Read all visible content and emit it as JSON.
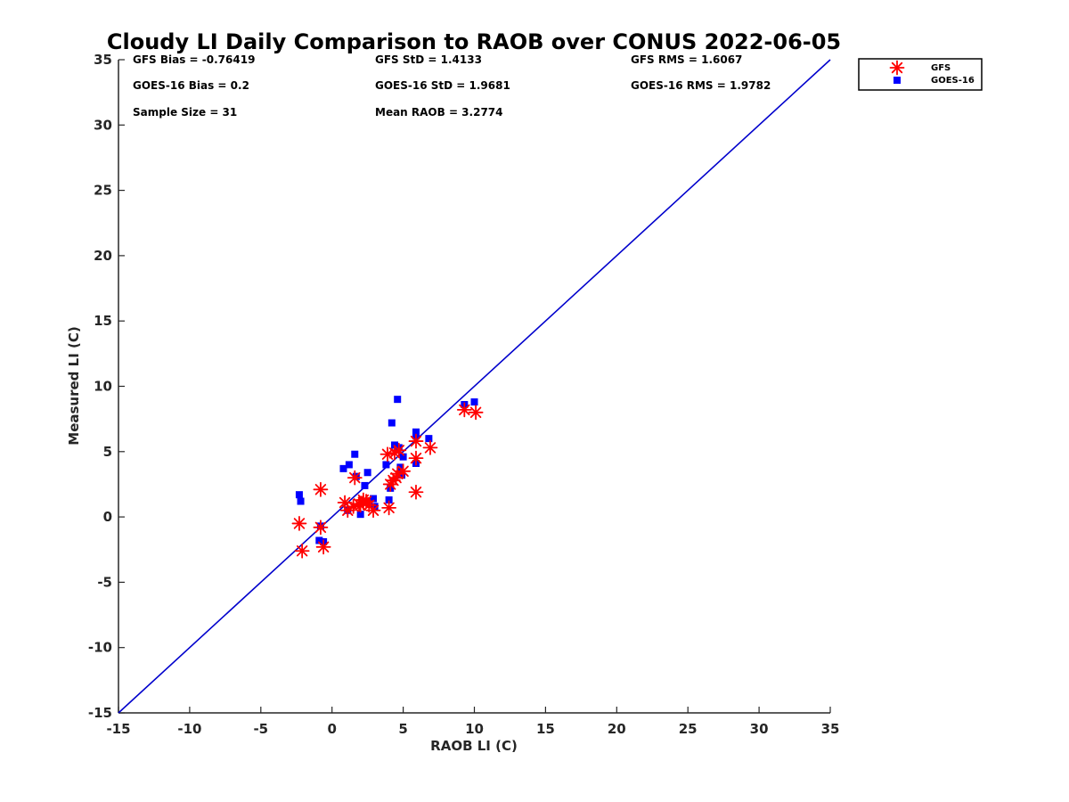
{
  "chart_data": {
    "type": "scatter",
    "title": "Cloudy LI Daily Comparison to RAOB over CONUS 2022-06-05",
    "xlabel": "RAOB LI (C)",
    "ylabel": "Measured LI (C)",
    "xlim": [
      -15,
      35
    ],
    "ylim": [
      -15,
      35
    ],
    "xticks": [
      "-15",
      "-10",
      "-5",
      "0",
      "5",
      "10",
      "15",
      "20",
      "25",
      "30",
      "35"
    ],
    "yticks": [
      "-15",
      "-10",
      "-5",
      "0",
      "5",
      "10",
      "15",
      "20",
      "25",
      "30",
      "35"
    ],
    "grid": false,
    "legend_position": "top-right",
    "reference_line": {
      "x": [
        -15,
        35
      ],
      "y": [
        -15,
        35
      ],
      "color": "#0000cc"
    },
    "stats": {
      "gfs_bias": "GFS Bias = -0.76419",
      "goes_bias": "GOES-16 Bias = 0.2",
      "sample_size": "Sample Size = 31",
      "gfs_std": "GFS StD = 1.4133",
      "goes_std": "GOES-16 StD = 1.9681",
      "mean_raob": "Mean RAOB = 3.2774",
      "gfs_rms": "GFS RMS = 1.6067",
      "goes_rms": "GOES-16 RMS = 1.9782"
    },
    "series": [
      {
        "name": "GFS",
        "marker": "asterisk",
        "color": "#ff0000",
        "points": [
          [
            -2.3,
            -0.5
          ],
          [
            -2.1,
            -2.6
          ],
          [
            -0.8,
            2.1
          ],
          [
            -0.8,
            -0.8
          ],
          [
            -0.6,
            -2.3
          ],
          [
            0.9,
            1.1
          ],
          [
            1.1,
            0.5
          ],
          [
            1.5,
            0.8
          ],
          [
            1.6,
            3.0
          ],
          [
            1.9,
            1.0
          ],
          [
            2.2,
            1.3
          ],
          [
            2.4,
            1.2
          ],
          [
            2.6,
            0.9
          ],
          [
            2.9,
            0.5
          ],
          [
            3.9,
            4.8
          ],
          [
            4.0,
            0.7
          ],
          [
            4.1,
            2.5
          ],
          [
            4.3,
            2.8
          ],
          [
            4.4,
            4.9
          ],
          [
            4.6,
            3.3
          ],
          [
            4.7,
            5.1
          ],
          [
            5.0,
            3.5
          ],
          [
            5.9,
            5.8
          ],
          [
            5.9,
            4.5
          ],
          [
            5.9,
            1.9
          ],
          [
            6.9,
            5.3
          ],
          [
            9.3,
            8.2
          ],
          [
            10.1,
            8.0
          ],
          [
            2.2,
            1.1
          ],
          [
            2.0,
            0.9
          ],
          [
            4.5,
            3.0
          ]
        ]
      },
      {
        "name": "GOES-16",
        "marker": "square",
        "color": "#0000ff",
        "points": [
          [
            -2.3,
            1.7
          ],
          [
            -2.2,
            1.2
          ],
          [
            -0.9,
            -1.8
          ],
          [
            -0.8,
            -0.7
          ],
          [
            -0.6,
            -1.9
          ],
          [
            0.8,
            3.7
          ],
          [
            1.1,
            0.5
          ],
          [
            1.2,
            4.0
          ],
          [
            1.6,
            4.8
          ],
          [
            1.7,
            3.1
          ],
          [
            2.0,
            0.2
          ],
          [
            2.3,
            2.4
          ],
          [
            2.5,
            3.4
          ],
          [
            2.9,
            1.4
          ],
          [
            3.0,
            0.8
          ],
          [
            3.8,
            4.0
          ],
          [
            4.0,
            1.3
          ],
          [
            4.1,
            2.2
          ],
          [
            4.2,
            7.2
          ],
          [
            4.4,
            5.5
          ],
          [
            4.6,
            9.0
          ],
          [
            4.7,
            5.3
          ],
          [
            4.8,
            3.8
          ],
          [
            4.9,
            3.2
          ],
          [
            5.0,
            4.6
          ],
          [
            5.9,
            6.5
          ],
          [
            5.9,
            6.2
          ],
          [
            5.9,
            4.1
          ],
          [
            6.8,
            6.0
          ],
          [
            9.3,
            8.6
          ],
          [
            10.0,
            8.8
          ]
        ]
      }
    ]
  }
}
